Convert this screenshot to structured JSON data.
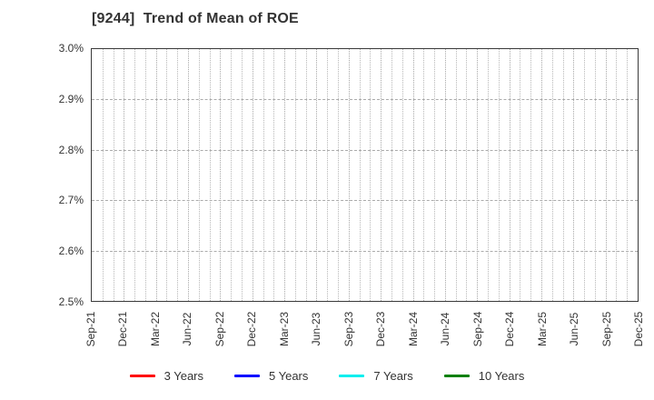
{
  "page": {
    "background": "#ffffff"
  },
  "colors": {
    "title_text": "#333333",
    "axis_text": "#333333",
    "plot_border": "#3a3a3a",
    "gridline_minor": "#b8b8b8",
    "gridline_major": "#a8a8a8"
  },
  "chart_data": {
    "type": "line",
    "title": "[9244]  Trend of Mean of ROE",
    "x_tick_labels": [
      "Sep-21",
      "Dec-21",
      "Mar-22",
      "Jun-22",
      "Sep-22",
      "Dec-22",
      "Mar-23",
      "Jun-23",
      "Sep-23",
      "Dec-23",
      "Mar-24",
      "Jun-24",
      "Sep-24",
      "Dec-24",
      "Mar-25",
      "Jun-25",
      "Sep-25",
      "Dec-25"
    ],
    "x_minor_gridlines": "monthly",
    "y_tick_labels": [
      "2.5%",
      "2.6%",
      "2.7%",
      "2.8%",
      "2.9%",
      "3.0%"
    ],
    "ylim": [
      2.5,
      3.0
    ],
    "y_unit": "%",
    "grid": true,
    "legend_position": "bottom-center",
    "series": [
      {
        "name": "3 Years",
        "color": "#ff0000",
        "values": []
      },
      {
        "name": "5 Years",
        "color": "#0000ff",
        "values": []
      },
      {
        "name": "7 Years",
        "color": "#00eeee",
        "values": []
      },
      {
        "name": "10 Years",
        "color": "#008000",
        "values": []
      }
    ],
    "plot_note": "no data lines visible within the plotted y-range"
  }
}
